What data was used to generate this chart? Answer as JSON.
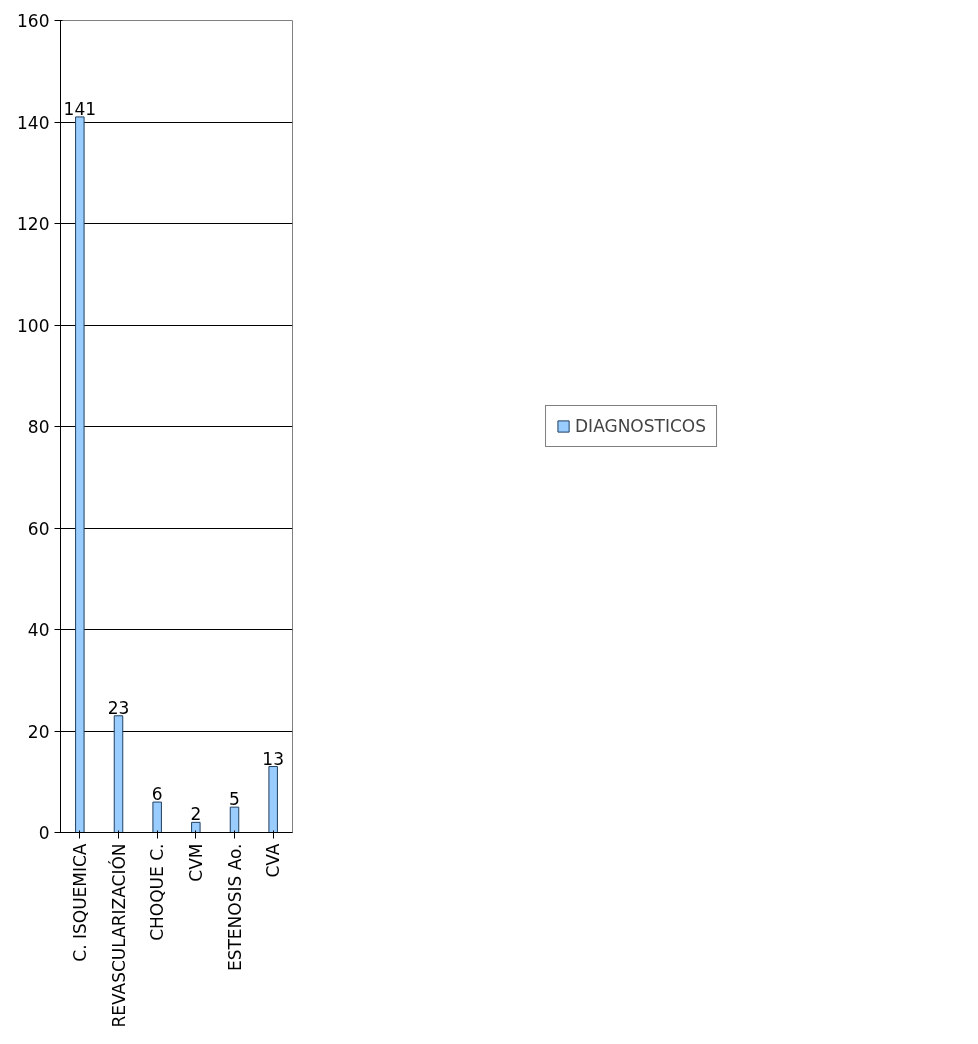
{
  "chart_data": {
    "type": "bar",
    "categories": [
      "C. ISQUEMICA",
      "REVASCULARIZACIÓN",
      "CHOQUE C.",
      "CVM",
      "ESTENOSIS Ao.",
      "CVA"
    ],
    "series": [
      {
        "name": "DIAGNOSTICOS",
        "color": "#99ccff",
        "values": [
          141,
          23,
          6,
          2,
          5,
          13
        ]
      }
    ],
    "ylim": [
      0,
      160
    ],
    "yticks": [
      0,
      20,
      40,
      60,
      80,
      100,
      120,
      140,
      160
    ],
    "grid": "y",
    "legend": "right",
    "data_labels": true
  }
}
